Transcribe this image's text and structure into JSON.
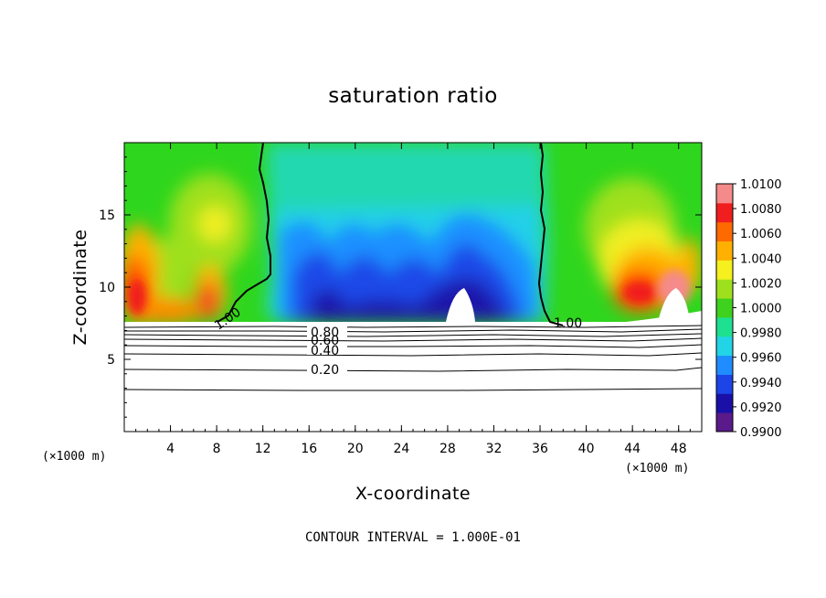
{
  "chart_data": {
    "type": "heatmap",
    "title": "saturation ratio",
    "xlabel": "X-coordinate",
    "ylabel": "Z-coordinate",
    "x_unit_left": "(×1000 m)",
    "x_unit_right": "(×1000 m)",
    "xlim": [
      0,
      50
    ],
    "ylim": [
      0,
      20
    ],
    "x_ticks": [
      "4",
      "8",
      "12",
      "16",
      "20",
      "24",
      "28",
      "32",
      "36",
      "40",
      "44",
      "48"
    ],
    "y_ticks": [
      "5",
      "10",
      "15"
    ],
    "colorbar": {
      "labels": [
        "1.0100",
        "1.0080",
        "1.0060",
        "1.0040",
        "1.0020",
        "1.0000",
        "0.9980",
        "0.9960",
        "0.9940",
        "0.9920",
        "0.9900"
      ],
      "min": 0.99,
      "max": 1.01,
      "colors": [
        "#5a1a8a",
        "#1a10a8",
        "#1c44e6",
        "#1f8cff",
        "#22d4e6",
        "#1ee090",
        "#3ed11e",
        "#9fe01e",
        "#f5f01e",
        "#ffb000",
        "#ff6a00",
        "#f01e1e",
        "#f58a8a"
      ]
    },
    "contour_lines": [
      {
        "label": "1.00"
      },
      {
        "label": "1.00"
      },
      {
        "label": "0.80"
      },
      {
        "label": "0.60"
      },
      {
        "label": "0.40"
      },
      {
        "label": "0.20"
      }
    ],
    "contour_interval": "CONTOUR INTERVAL = 1.000E-01"
  }
}
